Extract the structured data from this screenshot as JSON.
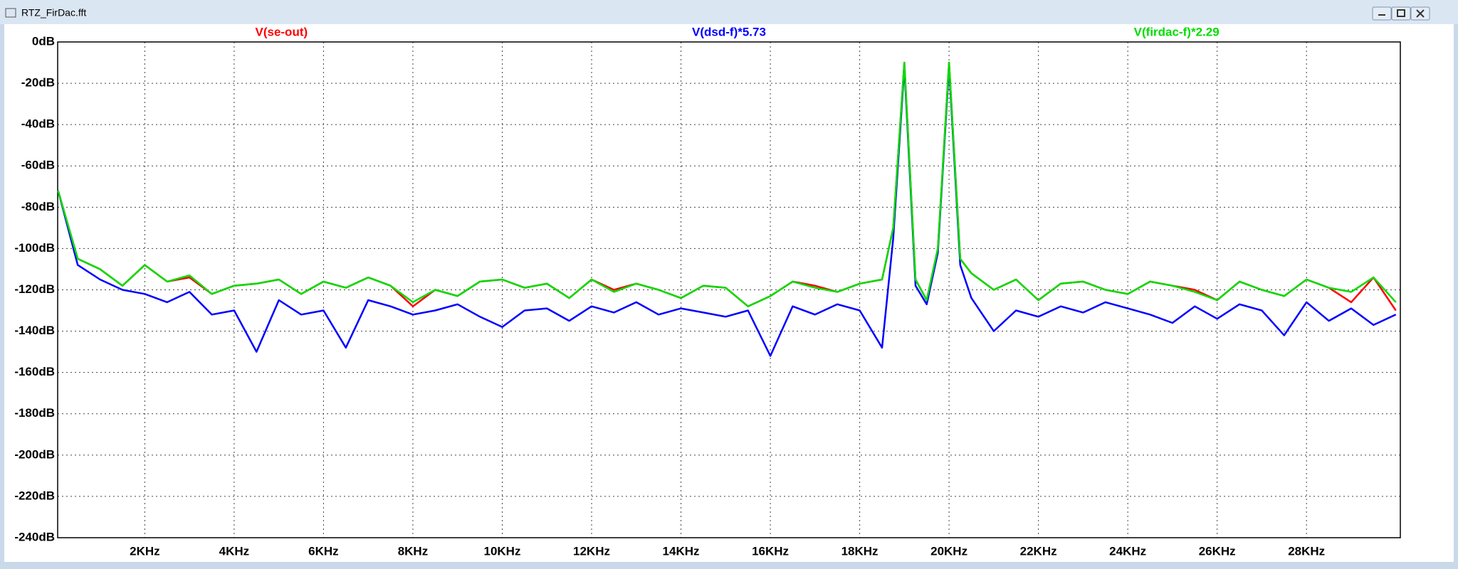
{
  "window_title": "RTZ_FirDac.fft",
  "chart_data": {
    "type": "line",
    "x": [
      60,
      500,
      1000,
      1500,
      2000,
      2500,
      3000,
      3500,
      4000,
      4500,
      5000,
      5500,
      6000,
      6500,
      7000,
      7500,
      8000,
      8500,
      9000,
      9500,
      10000,
      10500,
      11000,
      11500,
      12000,
      12500,
      13000,
      13500,
      14000,
      14500,
      15000,
      15500,
      16000,
      16500,
      17000,
      17500,
      18000,
      18500,
      18750,
      19000,
      19250,
      19500,
      19750,
      20000,
      20250,
      20500,
      21000,
      21500,
      22000,
      22500,
      23000,
      23500,
      24000,
      24500,
      25000,
      25500,
      26000,
      26500,
      27000,
      27500,
      28000,
      28500,
      29000,
      29500,
      30000
    ],
    "series": [
      {
        "name": "V(se-out)",
        "color": "#ff0000",
        "values": [
          -72,
          -105,
          -110,
          -118,
          -108,
          -116,
          -114,
          -122,
          -118,
          -117,
          -115,
          -122,
          -116,
          -119,
          -114,
          -118,
          -128,
          -120,
          -123,
          -116,
          -115,
          -119,
          -117,
          -124,
          -115,
          -120,
          -117,
          -120,
          -124,
          -118,
          -119,
          -128,
          -123,
          -116,
          -118,
          -121,
          -117,
          -115,
          -90,
          -10,
          -115,
          -125,
          -100,
          -10,
          -105,
          -112,
          -120,
          -115,
          -125,
          -117,
          -116,
          -120,
          -122,
          -116,
          -118,
          -120,
          -125,
          -116,
          -120,
          -123,
          -115,
          -119,
          -126,
          -114,
          -130
        ]
      },
      {
        "name": "V(dsd-f)*5.73",
        "color": "#0000ff",
        "values": [
          -72,
          -108,
          -115,
          -120,
          -122,
          -126,
          -121,
          -132,
          -130,
          -150,
          -125,
          -132,
          -130,
          -148,
          -125,
          -128,
          -132,
          -130,
          -127,
          -133,
          -138,
          -130,
          -129,
          -135,
          -128,
          -131,
          -126,
          -132,
          -129,
          -131,
          -133,
          -130,
          -152,
          -128,
          -132,
          -127,
          -130,
          -148,
          -95,
          -12,
          -118,
          -127,
          -102,
          -12,
          -108,
          -124,
          -140,
          -130,
          -133,
          -128,
          -131,
          -126,
          -129,
          -132,
          -136,
          -128,
          -134,
          -127,
          -130,
          -142,
          -126,
          -135,
          -129,
          -137,
          -132
        ]
      },
      {
        "name": "V(firdac-f)*2.29",
        "color": "#00dd00",
        "values": [
          -72,
          -105,
          -110,
          -118,
          -108,
          -116,
          -113,
          -122,
          -118,
          -117,
          -115,
          -122,
          -116,
          -119,
          -114,
          -118,
          -126,
          -120,
          -123,
          -116,
          -115,
          -119,
          -117,
          -124,
          -115,
          -121,
          -117,
          -120,
          -124,
          -118,
          -119,
          -128,
          -123,
          -116,
          -119,
          -121,
          -117,
          -115,
          -90,
          -10,
          -115,
          -125,
          -100,
          -10,
          -105,
          -112,
          -120,
          -115,
          -125,
          -117,
          -116,
          -120,
          -122,
          -116,
          -118,
          -121,
          -125,
          -116,
          -120,
          -123,
          -115,
          -119,
          -121,
          -114,
          -126
        ]
      }
    ],
    "xlim": [
      50,
      30100
    ],
    "ylim": [
      -240,
      0
    ],
    "xticks": [
      {
        "value": 2000,
        "label": "2KHz"
      },
      {
        "value": 4000,
        "label": "4KHz"
      },
      {
        "value": 6000,
        "label": "6KHz"
      },
      {
        "value": 8000,
        "label": "8KHz"
      },
      {
        "value": 10000,
        "label": "10KHz"
      },
      {
        "value": 12000,
        "label": "12KHz"
      },
      {
        "value": 14000,
        "label": "14KHz"
      },
      {
        "value": 16000,
        "label": "16KHz"
      },
      {
        "value": 18000,
        "label": "18KHz"
      },
      {
        "value": 20000,
        "label": "20KHz"
      },
      {
        "value": 22000,
        "label": "22KHz"
      },
      {
        "value": 24000,
        "label": "24KHz"
      },
      {
        "value": 26000,
        "label": "26KHz"
      },
      {
        "value": 28000,
        "label": "28KHz"
      }
    ],
    "yticks": [
      {
        "value": 0,
        "label": "0dB"
      },
      {
        "value": -20,
        "label": "-20dB"
      },
      {
        "value": -40,
        "label": "-40dB"
      },
      {
        "value": -60,
        "label": "-60dB"
      },
      {
        "value": -80,
        "label": "-80dB"
      },
      {
        "value": -100,
        "label": "-100dB"
      },
      {
        "value": -120,
        "label": "-120dB"
      },
      {
        "value": -140,
        "label": "-140dB"
      },
      {
        "value": -160,
        "label": "-160dB"
      },
      {
        "value": -180,
        "label": "-180dB"
      },
      {
        "value": -200,
        "label": "-200dB"
      },
      {
        "value": -220,
        "label": "-220dB"
      },
      {
        "value": -240,
        "label": "-240dB"
      }
    ],
    "grid": true
  }
}
